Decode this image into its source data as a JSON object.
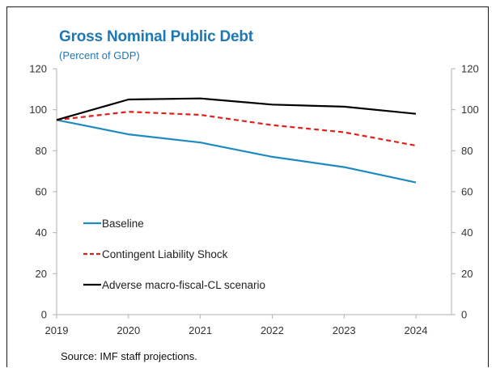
{
  "chart_data": {
    "type": "line",
    "title": "Gross Nominal Public Debt",
    "subtitle": "(Percent of GDP)",
    "x": [
      "2019",
      "2020",
      "2021",
      "2022",
      "2023",
      "2024"
    ],
    "ylim": [
      0,
      120
    ],
    "yticks": [
      0,
      20,
      40,
      60,
      80,
      100,
      120
    ],
    "grid": false,
    "dual_y_axis": true,
    "legend_position": "lower-left",
    "series": [
      {
        "name": "Baseline",
        "values": [
          95,
          88,
          84,
          77,
          72,
          64.5
        ],
        "color": "#1f8ac0",
        "style": "solid"
      },
      {
        "name": "Contingent Liability Shock",
        "values": [
          95,
          99,
          97.5,
          92.5,
          89,
          82.5
        ],
        "color": "#e0201b",
        "style": "dashed"
      },
      {
        "name": "Adverse macro-fiscal-CL scenario",
        "values": [
          95,
          105,
          105.5,
          102.5,
          101.5,
          98
        ],
        "color": "#000000",
        "style": "solid"
      }
    ],
    "source": "Source: IMF staff projections."
  }
}
